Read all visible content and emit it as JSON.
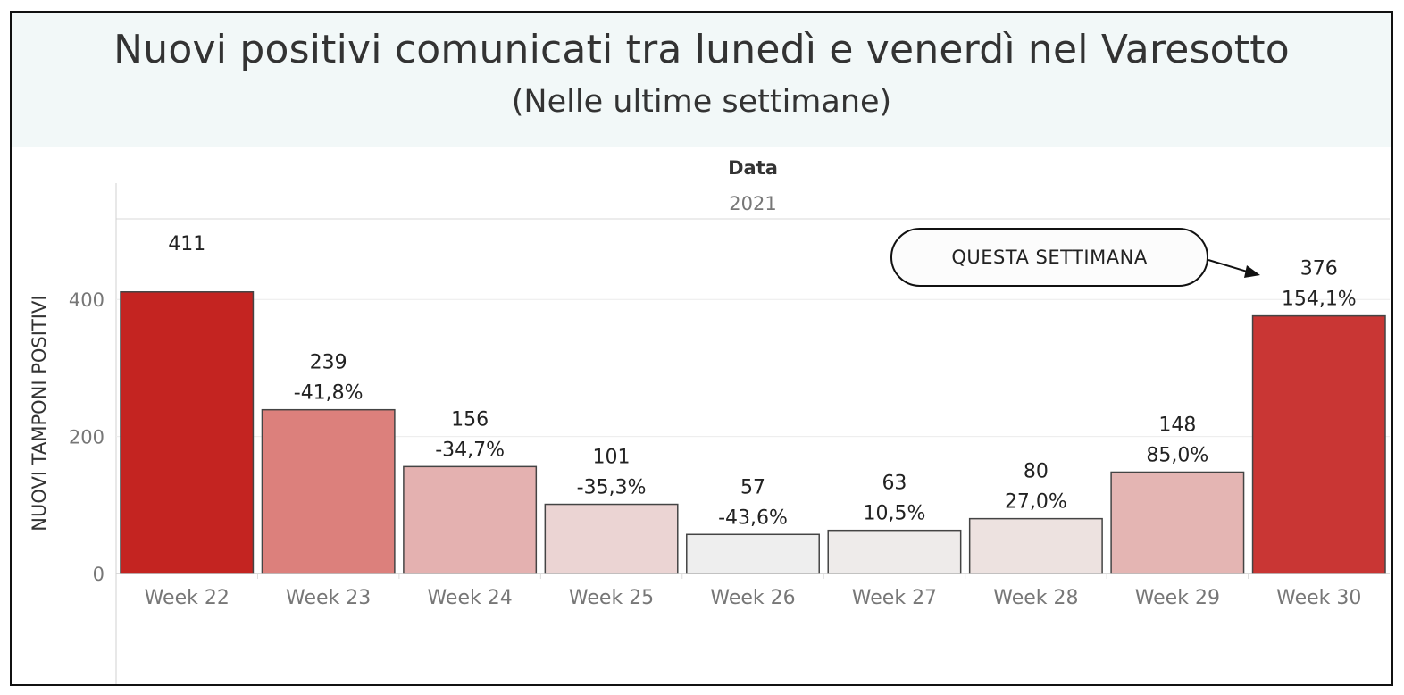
{
  "chart_data": {
    "type": "bar",
    "title": "Nuovi positivi comunicati tra lunedì e venerdì nel Varesotto",
    "subtitle": "(Nelle ultime settimane)",
    "header_label": "Data",
    "year_label": "2021",
    "ylabel": "NUOVI TAMPONI POSITIVI",
    "yticks": [
      0,
      200,
      400
    ],
    "ylim": [
      0,
      520
    ],
    "grid": true,
    "categories": [
      "Week 22",
      "Week 23",
      "Week 24",
      "Week 25",
      "Week 26",
      "Week 27",
      "Week 28",
      "Week 29",
      "Week 30"
    ],
    "values": [
      411,
      239,
      156,
      101,
      57,
      63,
      80,
      148,
      376
    ],
    "pct_change": [
      "",
      "-41,8%",
      "-34,7%",
      "-35,3%",
      "-43,6%",
      "10,5%",
      "27,0%",
      "85,0%",
      "154,1%"
    ],
    "colors": [
      "#c42421",
      "#dc807c",
      "#e4b1b0",
      "#ebd4d3",
      "#eeeeee",
      "#eeebea",
      "#ede2e0",
      "#e4b5b3",
      "#c93634"
    ],
    "annotation": "QUESTA SETTIMANA"
  }
}
